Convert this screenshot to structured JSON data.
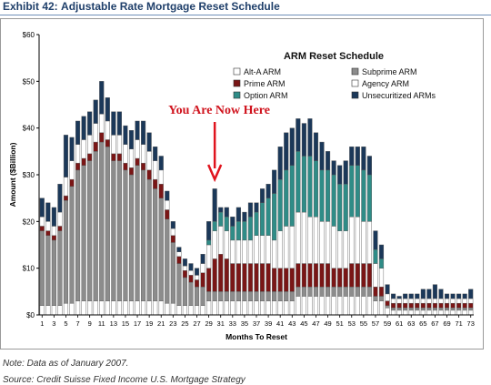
{
  "header": {
    "exhibit_label": "Exhibit 42:",
    "exhibit_title": "Adjustable Rate Mortgage Reset Schedule"
  },
  "footer": {
    "note": "Note: Data as of January 2007.",
    "source": "Source: Credit Suisse Fixed Income U.S. Mortgage Strategy"
  },
  "chart_data": {
    "type": "bar",
    "stacked": true,
    "title": "ARM Reset Schedule",
    "annotation": "You Are Now Here",
    "annotation_month": 30,
    "xlabel": "Months To Reset",
    "ylabel": "Amount ($Billion)",
    "ylim": [
      0,
      60
    ],
    "yticks": [
      "$0",
      "$10",
      "$20",
      "$30",
      "$40",
      "$50",
      "$60"
    ],
    "grid": false,
    "legend_position": "top-right",
    "categories": [
      1,
      2,
      3,
      4,
      5,
      6,
      7,
      8,
      9,
      10,
      11,
      12,
      13,
      14,
      15,
      16,
      17,
      18,
      19,
      20,
      21,
      22,
      23,
      24,
      25,
      26,
      27,
      28,
      29,
      30,
      31,
      32,
      33,
      34,
      35,
      36,
      37,
      38,
      39,
      40,
      41,
      42,
      43,
      44,
      45,
      46,
      47,
      48,
      49,
      50,
      51,
      52,
      53,
      54,
      55,
      56,
      57,
      58,
      59,
      60,
      61,
      62,
      63,
      64,
      65,
      66,
      67,
      68,
      69,
      70,
      71,
      72,
      73
    ],
    "xtick_labels": [
      "1",
      "3",
      "5",
      "7",
      "9",
      "11",
      "13",
      "15",
      "17",
      "19",
      "21",
      "23",
      "25",
      "27",
      "29",
      "31",
      "33",
      "35",
      "37",
      "39",
      "41",
      "43",
      "45",
      "47",
      "49",
      "51",
      "53",
      "55",
      "57",
      "59",
      "61",
      "63",
      "65",
      "67",
      "69",
      "71",
      "73"
    ],
    "series": [
      {
        "name": "Alt-A ARM",
        "color": "#ffffff",
        "values": [
          2,
          2,
          2,
          2,
          2.5,
          2.5,
          3,
          3,
          3,
          3,
          3,
          3,
          3,
          3,
          3,
          3,
          3,
          3,
          3,
          3,
          3,
          2.5,
          2.5,
          2,
          2,
          2,
          2,
          2,
          3,
          3,
          3,
          3,
          3,
          3,
          3,
          3,
          3,
          3,
          3,
          3,
          3,
          3,
          3,
          4,
          4,
          4,
          4,
          4,
          4,
          4,
          4,
          4,
          4,
          4,
          4,
          4,
          3,
          3,
          1.5,
          1,
          1,
          1,
          1,
          1,
          1,
          1,
          1,
          1,
          1,
          1,
          1,
          1,
          1
        ]
      },
      {
        "name": "Subprime ARM",
        "color": "#8c8c8c",
        "values": [
          16,
          15,
          14,
          16,
          22,
          25,
          28,
          29,
          30,
          32,
          34,
          33,
          30,
          30,
          28,
          27,
          29,
          28,
          26,
          24,
          22,
          18,
          13,
          9,
          6,
          5,
          4,
          4,
          2,
          2,
          2,
          2,
          2,
          2,
          2,
          2,
          2,
          2,
          2,
          2,
          2,
          2,
          2,
          2,
          2,
          2,
          2,
          2,
          2,
          2,
          2,
          2,
          2,
          2,
          2,
          2,
          1,
          1,
          0.5,
          0.5,
          0.5,
          0.5,
          0.5,
          0.5,
          0.5,
          0.5,
          0.5,
          0.5,
          0.5,
          0.5,
          0.5,
          0.5,
          0.5
        ]
      },
      {
        "name": "Prime ARM",
        "color": "#7a1616",
        "values": [
          1,
          1,
          1,
          1,
          1,
          1.5,
          1.5,
          1.5,
          1.5,
          2,
          2,
          1.5,
          1.5,
          1.5,
          1.5,
          1.5,
          1.5,
          1.5,
          2,
          2,
          3,
          2,
          1.5,
          1.5,
          1.5,
          1.5,
          1.5,
          3,
          5,
          7,
          8,
          7,
          6,
          6,
          6,
          6,
          6,
          6,
          6,
          5,
          5,
          5,
          5,
          5,
          5,
          5,
          5,
          5,
          5,
          4,
          4,
          4,
          5,
          5,
          5,
          5,
          2,
          2,
          1,
          1,
          1,
          1,
          1,
          1,
          1,
          1,
          1,
          1,
          1,
          1,
          1,
          1,
          1
        ]
      },
      {
        "name": "Agency ARM",
        "color": "#ffffff",
        "values": [
          2,
          2,
          2,
          3,
          4,
          4,
          4,
          4,
          4,
          4,
          4,
          4,
          4,
          4,
          4,
          4,
          4,
          4,
          4,
          4,
          3,
          2,
          1.5,
          1,
          1,
          1,
          1,
          2,
          5,
          6,
          6,
          6,
          5,
          5,
          5,
          5,
          6,
          6,
          6,
          6,
          8,
          9,
          9,
          11,
          11,
          10,
          10,
          9,
          9,
          9,
          8,
          8,
          10,
          10,
          9,
          9,
          5,
          4,
          1.5,
          1,
          1,
          1,
          1,
          1,
          1,
          1,
          1,
          1,
          1,
          1,
          1,
          1,
          1
        ]
      },
      {
        "name": "Option ARM",
        "color": "#2f8c87",
        "values": [
          0,
          0,
          0,
          0,
          0,
          0,
          0,
          0,
          0,
          0,
          0,
          0,
          0,
          0,
          0,
          0,
          0,
          0,
          0,
          0,
          0,
          0,
          0,
          0,
          0,
          0,
          0,
          0,
          1,
          2,
          3,
          3,
          3,
          4,
          4,
          5,
          5,
          7,
          8,
          10,
          11,
          12,
          13,
          13,
          12,
          13,
          12,
          11,
          11,
          11,
          10,
          10,
          11,
          11,
          11,
          10,
          3,
          2,
          0,
          0,
          0,
          0,
          0,
          0,
          0,
          0,
          0,
          0,
          0,
          0,
          0,
          0,
          0
        ]
      },
      {
        "name": "Unsecuritized ARMs",
        "color": "#1b3859",
        "values": [
          4,
          4,
          4,
          6,
          9,
          5,
          5,
          5,
          5,
          5,
          7,
          5,
          5,
          5,
          4,
          4,
          4,
          5,
          4,
          3,
          3,
          2,
          1.5,
          1,
          1.5,
          1.5,
          1.5,
          2,
          4,
          7,
          1,
          2,
          2,
          3,
          2,
          3,
          2,
          3,
          3,
          5,
          7,
          8,
          8,
          7,
          7,
          8,
          6,
          6,
          4,
          3,
          4,
          5,
          4,
          4,
          5,
          4,
          4,
          3,
          2,
          1,
          0.5,
          1,
          1,
          1,
          2,
          2,
          3,
          2,
          1,
          1,
          1,
          1,
          2
        ]
      }
    ]
  }
}
